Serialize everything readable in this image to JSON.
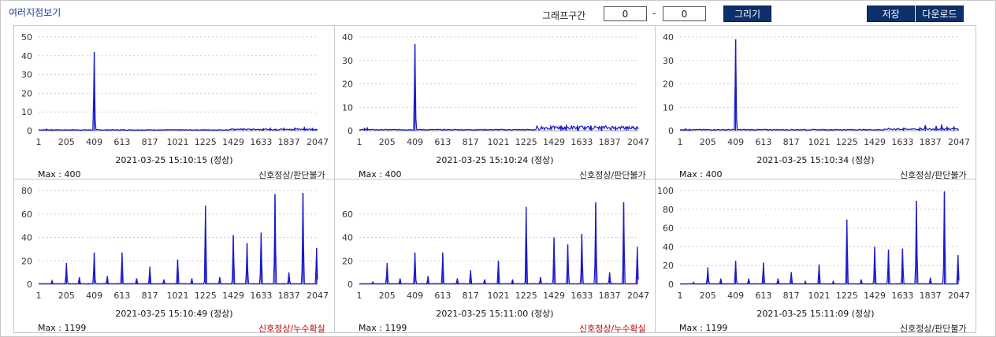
{
  "header": {
    "title": "여러지점보기",
    "range_label": "그래프구간",
    "range_start": "0",
    "range_end": "0",
    "range_sep": "-",
    "draw_button": "그리기",
    "save_button": "저장",
    "download_button": "다운로드"
  },
  "colors": {
    "line": "#1a1acc",
    "status_normal": "#222222",
    "status_alert": "#c00000",
    "button": "#0e2f6b"
  },
  "chart_data": [
    {
      "type": "line",
      "xticks": [
        "1",
        "205",
        "409",
        "613",
        "817",
        "1021",
        "1225",
        "1429",
        "1633",
        "1837",
        "2047"
      ],
      "xlim": [
        1,
        2047
      ],
      "ylim": [
        0,
        50
      ],
      "yticks": [
        0,
        10,
        20,
        30,
        40,
        50
      ],
      "grid": true,
      "peaks": [
        [
          409,
          42
        ],
        [
          60,
          0.9
        ],
        [
          100,
          0.6
        ],
        [
          600,
          0.5
        ],
        [
          1440,
          0.7
        ],
        [
          1500,
          1
        ],
        [
          1560,
          0.8
        ],
        [
          1650,
          1
        ],
        [
          1700,
          1.2
        ],
        [
          1740,
          0.9
        ],
        [
          1800,
          1.3
        ],
        [
          1880,
          1.4
        ],
        [
          1950,
          1.8
        ],
        [
          2010,
          1.2
        ]
      ],
      "noise_from": 1400,
      "noise_level": 0.6,
      "timestamp": "2021-03-25 15:10:15 (정상)",
      "max_label": "Max : 400",
      "status": "신호정상/판단불가",
      "status_alert": false
    },
    {
      "type": "line",
      "xticks": [
        "1",
        "205",
        "409",
        "613",
        "817",
        "1021",
        "1225",
        "1429",
        "1633",
        "1837",
        "2047"
      ],
      "xlim": [
        1,
        2047
      ],
      "ylim": [
        0,
        40
      ],
      "yticks": [
        0,
        10,
        20,
        30,
        40
      ],
      "grid": true,
      "peaks": [
        [
          409,
          37
        ],
        [
          40,
          1
        ],
        [
          60,
          1.2
        ],
        [
          620,
          0.6
        ],
        [
          1480,
          2
        ],
        [
          1520,
          2.5
        ],
        [
          1600,
          2
        ],
        [
          1700,
          2.2
        ],
        [
          1780,
          1.8
        ],
        [
          1880,
          1.6
        ],
        [
          1960,
          1.5
        ]
      ],
      "noise_from": 1300,
      "noise_level": 1.6,
      "timestamp": "2021-03-25 15:10:24 (정상)",
      "max_label": "Max : 400",
      "status": "신호정상/판단불가",
      "status_alert": false
    },
    {
      "type": "line",
      "xticks": [
        "1",
        "205",
        "409",
        "613",
        "817",
        "1021",
        "1225",
        "1429",
        "1633",
        "1837",
        "2047"
      ],
      "xlim": [
        1,
        2047
      ],
      "ylim": [
        0,
        40
      ],
      "yticks": [
        0,
        10,
        20,
        30,
        40
      ],
      "grid": true,
      "peaks": [
        [
          409,
          39
        ],
        [
          40,
          0.8
        ],
        [
          70,
          0.6
        ],
        [
          1640,
          1
        ],
        [
          1760,
          1.2
        ],
        [
          1800,
          2.4
        ],
        [
          1880,
          2
        ],
        [
          1920,
          2.6
        ],
        [
          1960,
          1.5
        ],
        [
          2010,
          1.8
        ]
      ],
      "noise_from": 1500,
      "noise_level": 0.5,
      "timestamp": "2021-03-25 15:10:34 (정상)",
      "max_label": "Max : 400",
      "status": "신호정상/판단불가",
      "status_alert": false
    },
    {
      "type": "line",
      "xticks": [
        "1",
        "205",
        "409",
        "613",
        "817",
        "1021",
        "1225",
        "1429",
        "1633",
        "1837",
        "2047"
      ],
      "xlim": [
        1,
        2047
      ],
      "ylim": [
        0,
        80
      ],
      "yticks": [
        0,
        20,
        40,
        60,
        80
      ],
      "grid": true,
      "peaks": [
        [
          100,
          3
        ],
        [
          205,
          18
        ],
        [
          300,
          6
        ],
        [
          409,
          27
        ],
        [
          505,
          7
        ],
        [
          613,
          27
        ],
        [
          720,
          5
        ],
        [
          817,
          15
        ],
        [
          920,
          4
        ],
        [
          1021,
          21
        ],
        [
          1125,
          5
        ],
        [
          1225,
          67
        ],
        [
          1330,
          6
        ],
        [
          1429,
          42
        ],
        [
          1530,
          35
        ],
        [
          1633,
          44
        ],
        [
          1735,
          77
        ],
        [
          1837,
          10
        ],
        [
          1940,
          78
        ],
        [
          2040,
          31
        ]
      ],
      "noise_from": 2048,
      "noise_level": 0,
      "timestamp": "2021-03-25 15:10:49 (정상)",
      "max_label": "Max : 1199",
      "status": "신호정상/누수확실",
      "status_alert": true
    },
    {
      "type": "line",
      "xticks": [
        "1",
        "205",
        "409",
        "613",
        "817",
        "1021",
        "1225",
        "1429",
        "1633",
        "1837",
        "2047"
      ],
      "xlim": [
        1,
        2047
      ],
      "ylim": [
        0,
        80
      ],
      "yticks": [
        0,
        20,
        40,
        60
      ],
      "grid": true,
      "peaks": [
        [
          100,
          2
        ],
        [
          205,
          18
        ],
        [
          300,
          5
        ],
        [
          409,
          27
        ],
        [
          505,
          7
        ],
        [
          613,
          27
        ],
        [
          720,
          5
        ],
        [
          817,
          12
        ],
        [
          920,
          4
        ],
        [
          1021,
          20
        ],
        [
          1125,
          4
        ],
        [
          1225,
          66
        ],
        [
          1330,
          6
        ],
        [
          1429,
          40
        ],
        [
          1530,
          34
        ],
        [
          1633,
          43
        ],
        [
          1735,
          70
        ],
        [
          1837,
          10
        ],
        [
          1940,
          70
        ],
        [
          2040,
          32
        ]
      ],
      "noise_from": 2048,
      "noise_level": 0,
      "timestamp": "2021-03-25 15:11:00 (정상)",
      "max_label": "Max : 1199",
      "status": "신호정상/누수확실",
      "status_alert": true
    },
    {
      "type": "line",
      "xticks": [
        "1",
        "205",
        "409",
        "613",
        "817",
        "1021",
        "1225",
        "1429",
        "1633",
        "1837",
        "2047"
      ],
      "xlim": [
        1,
        2047
      ],
      "ylim": [
        0,
        100
      ],
      "yticks": [
        0,
        20,
        40,
        60,
        80,
        100
      ],
      "grid": true,
      "peaks": [
        [
          100,
          2
        ],
        [
          205,
          18
        ],
        [
          300,
          6
        ],
        [
          409,
          25
        ],
        [
          505,
          6
        ],
        [
          613,
          23
        ],
        [
          720,
          6
        ],
        [
          817,
          13
        ],
        [
          920,
          3
        ],
        [
          1021,
          21
        ],
        [
          1125,
          3
        ],
        [
          1225,
          69
        ],
        [
          1330,
          5
        ],
        [
          1429,
          40
        ],
        [
          1530,
          37
        ],
        [
          1633,
          38
        ],
        [
          1735,
          89
        ],
        [
          1837,
          7
        ],
        [
          1940,
          99
        ],
        [
          2040,
          31
        ]
      ],
      "noise_from": 2048,
      "noise_level": 0,
      "timestamp": "2021-03-25 15:11:09 (정상)",
      "max_label": "Max : 1199",
      "status": "신호정상/판단불가",
      "status_alert": false
    }
  ]
}
